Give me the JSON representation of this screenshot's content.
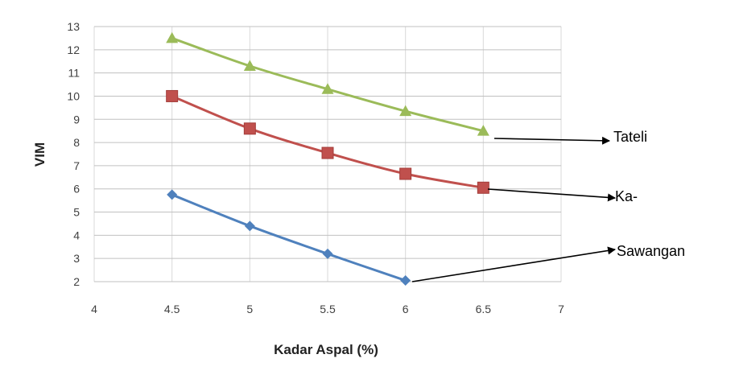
{
  "chart_data": {
    "type": "line",
    "xlabel": "Kadar Aspal (%)",
    "ylabel": "VIM",
    "xlim": [
      4,
      7
    ],
    "ylim": [
      2,
      13
    ],
    "xticks": [
      "4",
      "4.5",
      "5",
      "5.5",
      "6",
      "6.5",
      "7"
    ],
    "yticks": [
      "2",
      "3",
      "4",
      "5",
      "6",
      "7",
      "8",
      "9",
      "10",
      "11",
      "12",
      "13"
    ],
    "grid": true,
    "series": [
      {
        "name": "Tateli",
        "color": "#9bbb59",
        "marker": "triangle",
        "x": [
          4.5,
          5,
          5.5,
          6,
          6.5
        ],
        "y": [
          12.5,
          11.3,
          10.3,
          9.35,
          8.5
        ]
      },
      {
        "name": "Ka-",
        "color": "#c0504d",
        "marker": "square",
        "x": [
          4.5,
          5,
          5.5,
          6,
          6.5
        ],
        "y": [
          10.0,
          8.6,
          7.55,
          6.65,
          6.05
        ]
      },
      {
        "name": "Sawangan",
        "color": "#4f81bd",
        "marker": "diamond",
        "x": [
          4.5,
          5,
          5.5,
          6
        ],
        "y": [
          5.75,
          4.4,
          3.2,
          2.05
        ]
      }
    ]
  }
}
